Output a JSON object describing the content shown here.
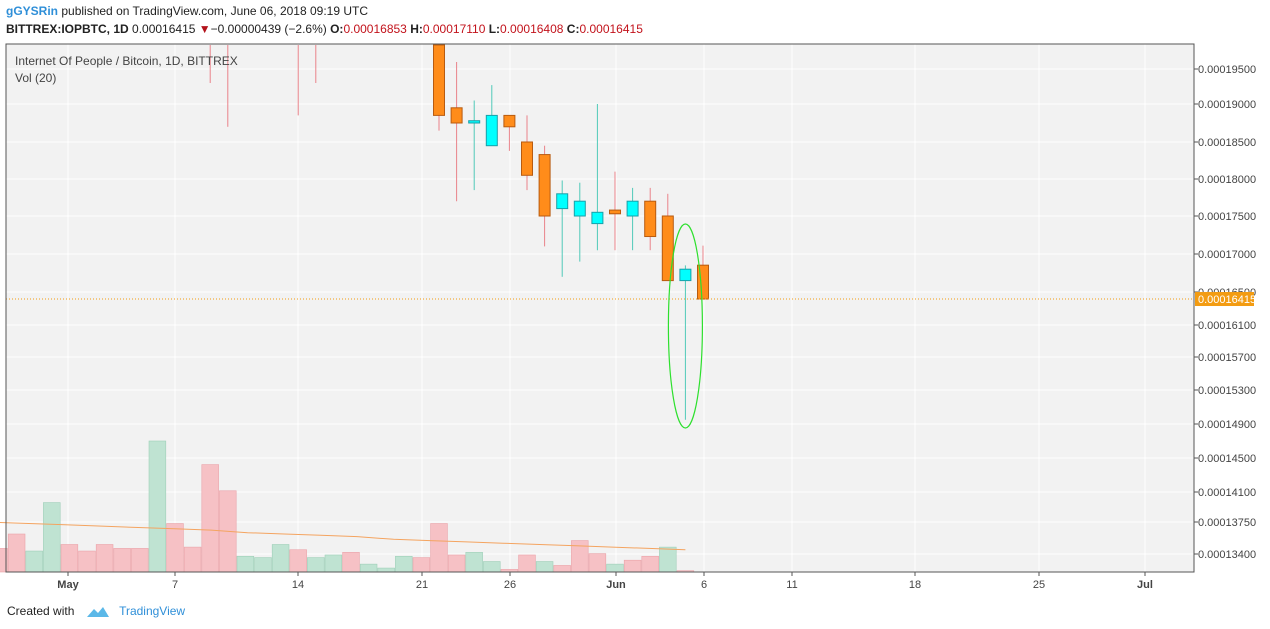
{
  "header": {
    "author": "gGYSRin",
    "published": "published on TradingView.com, June 06, 2018 09:19 UTC"
  },
  "ohlc": {
    "symbol": "BITTREX:IOPBTC, 1D",
    "last": "0.00016415",
    "arrow": "▼",
    "change": "−0.00000439 (−2.6%)",
    "o_label": "O:",
    "o": "0.00016853",
    "h_label": "H:",
    "h": "0.00017110",
    "l_label": "L:",
    "l": "0.00016408",
    "c_label": "C:",
    "c": "0.00016415"
  },
  "legend": {
    "title": "Internet Of People / Bitcoin, 1D, BITTREX",
    "volume": "Vol (20)"
  },
  "footer": {
    "created_with": "Created with",
    "brand": "TradingView"
  },
  "colors": {
    "up": "#00ffff",
    "down": "#ff8c1a",
    "up_volume": "#bfe3d2",
    "down_volume": "#f6c1c5",
    "ma": "#f4a460",
    "last_price": "#f39c12",
    "annotation": "#2ee02e"
  },
  "chart_data": {
    "type": "candlestick",
    "x_tick_labels": [
      "May",
      "7",
      "14",
      "21",
      "26",
      "Jun",
      "6",
      "11",
      "18",
      "25",
      "Jul"
    ],
    "y_tick_labels": [
      "0.00019500",
      "0.00019000",
      "0.00018500",
      "0.00018000",
      "0.00017500",
      "0.00017000",
      "0.00016500",
      "0.00016100",
      "0.00015700",
      "0.00015300",
      "0.00014900",
      "0.00014500",
      "0.00014100",
      "0.00013750",
      "0.00013400"
    ],
    "last_price_label": "0.00016415",
    "last_price": 0.00016415,
    "candles": [
      {
        "date": "2018-04-29",
        "high": 0.000199,
        "low": 0.0001985
      },
      {
        "date": "2018-05-08",
        "high": 0.000199,
        "low": 0.000193
      },
      {
        "date": "2018-05-09",
        "high": 0.000199,
        "low": 0.000187
      },
      {
        "date": "2018-05-13",
        "high": 0.000199,
        "low": 0.0001885
      },
      {
        "date": "2018-05-14",
        "high": 0.000199,
        "low": 0.000193
      },
      {
        "date": "2018-05-15",
        "high": 0.000199,
        "low": 0.0001985
      },
      {
        "date": "2018-05-21",
        "open": 0.0002,
        "high": 0.0002,
        "low": 0.0001865,
        "close": 0.0001885
      },
      {
        "date": "2018-05-22",
        "open": 0.0001895,
        "high": 0.000196,
        "low": 0.000177,
        "close": 0.0001875
      },
      {
        "date": "2018-05-23",
        "open": 0.0001875,
        "high": 0.0001905,
        "low": 0.0001785,
        "close": 0.0001878
      },
      {
        "date": "2018-05-24",
        "open": 0.0001845,
        "high": 0.0001927,
        "low": 0.0001845,
        "close": 0.0001885
      },
      {
        "date": "2018-05-25",
        "open": 0.0001885,
        "high": 0.0001885,
        "low": 0.0001838,
        "close": 0.000187
      },
      {
        "date": "2018-05-26",
        "open": 0.000185,
        "high": 0.0001885,
        "low": 0.0001785,
        "close": 0.0001805
      },
      {
        "date": "2018-05-27",
        "open": 0.0001833,
        "high": 0.0001845,
        "low": 0.000171,
        "close": 0.000175
      },
      {
        "date": "2018-05-28",
        "open": 0.000176,
        "high": 0.0001798,
        "low": 0.000167,
        "close": 0.000178
      },
      {
        "date": "2018-05-29",
        "open": 0.000175,
        "high": 0.0001795,
        "low": 0.000169,
        "close": 0.000177
      },
      {
        "date": "2018-05-30",
        "open": 0.000174,
        "high": 0.00019,
        "low": 0.0001705,
        "close": 0.0001755
      },
      {
        "date": "2018-05-31",
        "open": 0.0001758,
        "high": 0.000181,
        "low": 0.0001705,
        "close": 0.0001753
      },
      {
        "date": "2018-06-01",
        "open": 0.000175,
        "high": 0.0001788,
        "low": 0.0001705,
        "close": 0.000177
      },
      {
        "date": "2018-06-02",
        "open": 0.000177,
        "high": 0.0001788,
        "low": 0.0001705,
        "close": 0.0001723
      },
      {
        "date": "2018-06-03",
        "open": 0.000175,
        "high": 0.000178,
        "low": 0.000167,
        "close": 0.0001665
      },
      {
        "date": "2018-06-04",
        "open": 0.0001665,
        "high": 0.0001685,
        "low": 0.0001495,
        "close": 0.000168
      },
      {
        "date": "2018-06-05",
        "open": 0.00016853,
        "high": 0.0001711,
        "low": 0.00016408,
        "close": 0.00016415
      }
    ],
    "volume": [
      {
        "date": "2018-04-24",
        "dir": "down",
        "rel": 0.3
      },
      {
        "date": "2018-04-25",
        "dir": "up",
        "rel": 0.15
      },
      {
        "date": "2018-04-26",
        "dir": "down",
        "rel": 0.18
      },
      {
        "date": "2018-04-27",
        "dir": "down",
        "rel": 0.29
      },
      {
        "date": "2018-04-28",
        "dir": "up",
        "rel": 0.16
      },
      {
        "date": "2018-04-29",
        "dir": "up",
        "rel": 0.53
      },
      {
        "date": "2018-04-30",
        "dir": "down",
        "rel": 0.21
      },
      {
        "date": "2018-05-01",
        "dir": "down",
        "rel": 0.16
      },
      {
        "date": "2018-05-02",
        "dir": "down",
        "rel": 0.21
      },
      {
        "date": "2018-05-03",
        "dir": "down",
        "rel": 0.18
      },
      {
        "date": "2018-05-04",
        "dir": "down",
        "rel": 0.18
      },
      {
        "date": "2018-05-05",
        "dir": "up",
        "rel": 1.0
      },
      {
        "date": "2018-05-06",
        "dir": "down",
        "rel": 0.37
      },
      {
        "date": "2018-05-07",
        "dir": "down",
        "rel": 0.19
      },
      {
        "date": "2018-05-08",
        "dir": "down",
        "rel": 0.82
      },
      {
        "date": "2018-05-09",
        "dir": "down",
        "rel": 0.62
      },
      {
        "date": "2018-05-10",
        "dir": "up",
        "rel": 0.12
      },
      {
        "date": "2018-05-11",
        "dir": "up",
        "rel": 0.11
      },
      {
        "date": "2018-05-12",
        "dir": "up",
        "rel": 0.21
      },
      {
        "date": "2018-05-13",
        "dir": "down",
        "rel": 0.17
      },
      {
        "date": "2018-05-14",
        "dir": "up",
        "rel": 0.11
      },
      {
        "date": "2018-05-15",
        "dir": "up",
        "rel": 0.13
      },
      {
        "date": "2018-05-16",
        "dir": "down",
        "rel": 0.15
      },
      {
        "date": "2018-05-17",
        "dir": "up",
        "rel": 0.06
      },
      {
        "date": "2018-05-18",
        "dir": "up",
        "rel": 0.03
      },
      {
        "date": "2018-05-19",
        "dir": "up",
        "rel": 0.12
      },
      {
        "date": "2018-05-20",
        "dir": "down",
        "rel": 0.11
      },
      {
        "date": "2018-05-21",
        "dir": "down",
        "rel": 0.37
      },
      {
        "date": "2018-05-22",
        "dir": "down",
        "rel": 0.13
      },
      {
        "date": "2018-05-23",
        "dir": "up",
        "rel": 0.15
      },
      {
        "date": "2018-05-24",
        "dir": "up",
        "rel": 0.08
      },
      {
        "date": "2018-05-25",
        "dir": "down",
        "rel": 0.02
      },
      {
        "date": "2018-05-26",
        "dir": "down",
        "rel": 0.13
      },
      {
        "date": "2018-05-27",
        "dir": "up",
        "rel": 0.08
      },
      {
        "date": "2018-05-28",
        "dir": "down",
        "rel": 0.05
      },
      {
        "date": "2018-05-29",
        "dir": "down",
        "rel": 0.24
      },
      {
        "date": "2018-05-30",
        "dir": "down",
        "rel": 0.14
      },
      {
        "date": "2018-05-31",
        "dir": "up",
        "rel": 0.06
      },
      {
        "date": "2018-06-01",
        "dir": "down",
        "rel": 0.09
      },
      {
        "date": "2018-06-02",
        "dir": "down",
        "rel": 0.12
      },
      {
        "date": "2018-06-03",
        "dir": "up",
        "rel": 0.19
      },
      {
        "date": "2018-06-04",
        "dir": "down",
        "rel": 0.01
      }
    ],
    "volume_ma": [
      0.39,
      0.38,
      0.37,
      0.36,
      0.35,
      0.34,
      0.33,
      0.32,
      0.3,
      0.29,
      0.28,
      0.27,
      0.25,
      0.24,
      0.23,
      0.22,
      0.21,
      0.2,
      0.19,
      0.18,
      0.17
    ],
    "annotation": "ellipse around 2018-06-04 wick"
  }
}
